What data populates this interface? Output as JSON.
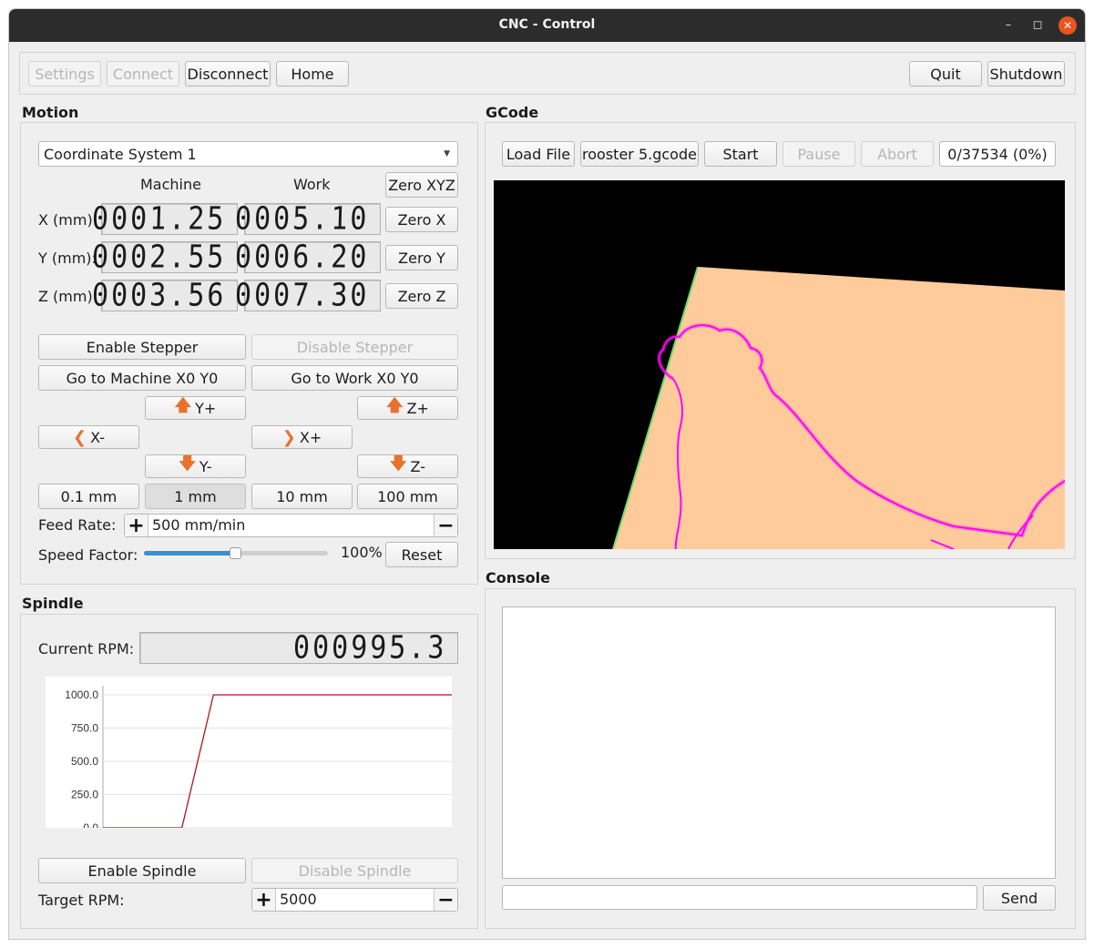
{
  "window": {
    "title": "CNC - Control"
  },
  "toolbar": {
    "settings": "Settings",
    "connect": "Connect",
    "disconnect": "Disconnect",
    "home": "Home",
    "quit": "Quit",
    "shutdown": "Shutdown"
  },
  "motion": {
    "title": "Motion",
    "coordinate_system": "Coordinate System 1",
    "col_machine": "Machine",
    "col_work": "Work",
    "zero_xyz": "Zero XYZ",
    "rows": [
      {
        "label": "X (mm):",
        "machine": "0001.25",
        "work": "0005.10",
        "zero": "Zero X"
      },
      {
        "label": "Y (mm):",
        "machine": "0002.55",
        "work": "0006.20",
        "zero": "Zero Y"
      },
      {
        "label": "Z (mm):",
        "machine": "0003.56",
        "work": "0007.30",
        "zero": "Zero Z"
      }
    ],
    "enable_stepper": "Enable Stepper",
    "disable_stepper": "Disable Stepper",
    "goto_machine": "Go to Machine X0 Y0",
    "goto_work": "Go to Work X0 Y0",
    "jog": {
      "y_plus": "Y+",
      "y_minus": "Y-",
      "x_minus": "X-",
      "x_plus": "X+",
      "z_plus": "Z+",
      "z_minus": "Z-"
    },
    "steps": [
      "0.1 mm",
      "1 mm",
      "10 mm",
      "100 mm"
    ],
    "feed_label": "Feed Rate:",
    "feed_value": "500 mm/min",
    "speed_label": "Speed Factor:",
    "speed_value": "100%",
    "speed_fraction": 0.5,
    "reset": "Reset"
  },
  "spindle": {
    "title": "Spindle",
    "current_label": "Current RPM:",
    "current_value": "000995.3",
    "enable": "Enable Spindle",
    "disable": "Disable Spindle",
    "target_label": "Target RPM:",
    "target_value": "5000"
  },
  "gcode": {
    "title": "GCode",
    "load": "Load File",
    "filename": "rooster 5.gcode",
    "start": "Start",
    "pause": "Pause",
    "abort": "Abort",
    "progress": "0/37534 (0%)"
  },
  "console": {
    "title": "Console",
    "send": "Send",
    "input_value": ""
  },
  "chart_data": {
    "type": "line",
    "x": [
      0,
      10,
      14,
      45
    ],
    "series": [
      {
        "values": [
          0,
          0,
          1000,
          1000
        ]
      }
    ],
    "xlim": [
      0,
      45
    ],
    "ylim": [
      0,
      1000
    ],
    "ytick_labels": [
      "0.0",
      "250.0",
      "500.0",
      "750.0",
      "1000.0"
    ],
    "grid": true,
    "color": "#b0141e"
  },
  "colors": {
    "accent_close": "#e95420",
    "slider_fill": "#3c8fd0",
    "jog_arrow": "#e8722d",
    "material": "#ffcb9b",
    "toolpath": "#ff00ff",
    "edge": "#6ddc6a"
  }
}
